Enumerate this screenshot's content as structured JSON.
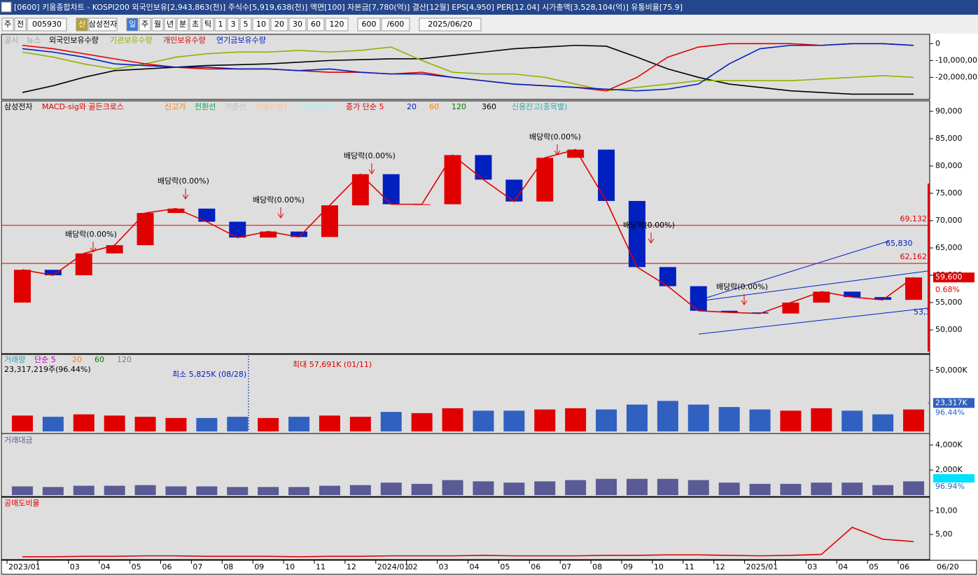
{
  "title_bar": {
    "text": "[0600] 키움종합차트 - KOSPI200 외국인보유[2,943,863(천)] 주식수[5,919,638(천)] 액면[100] 자본금[7,780(억)] 결산[12월] EPS[4,950] PER[12.04] 시가총액[3,528,104(억)] 유통비율[75.9]"
  },
  "toolbar": {
    "items": [
      "주",
      "전",
      "005930",
      "신",
      "삼성전자",
      "일",
      "주",
      "월",
      "년",
      "분",
      "초",
      "틱",
      "1",
      "3",
      "5",
      "10",
      "20",
      "30",
      "60",
      "120",
      "600",
      "/600",
      "2025/06/20"
    ]
  },
  "x_axis": {
    "categories": [
      "2023/01",
      null,
      "03",
      "04",
      "05",
      "06",
      "07",
      "08",
      "09",
      "10",
      "11",
      "12",
      "2024/01",
      "02",
      "03",
      "04",
      "05",
      "06",
      "07",
      "08",
      "09",
      "10",
      "11",
      "12",
      "2025/01",
      null,
      "03",
      "04",
      "05",
      "06"
    ],
    "last_label": "06/20"
  },
  "investor_panel": {
    "type": "line",
    "extra_legend": [
      "공시",
      "뉴스"
    ],
    "series": [
      {
        "name": "외국인보유수량",
        "color": "#000000",
        "values": [
          -29000000,
          -25000000,
          -20000000,
          -16000000,
          -15000000,
          -14000000,
          -13000000,
          -12500000,
          -12000000,
          -11000000,
          -10000000,
          -9500000,
          -9000000,
          -9000000,
          -7000000,
          -5000000,
          -3000000,
          -2000000,
          -1000000,
          -1500000,
          -8000000,
          -15000000,
          -20000000,
          -24000000,
          -26000000,
          -28000000,
          -29000000,
          -30000000,
          -30000000,
          -30000000
        ]
      },
      {
        "name": "기관보유수량",
        "color": "#8cb400",
        "values": [
          -5000000,
          -8000000,
          -12000000,
          -15000000,
          -12000000,
          -8000000,
          -6000000,
          -5000000,
          -5000000,
          -4000000,
          -5000000,
          -4000000,
          -2000000,
          -10000000,
          -17000000,
          -18000000,
          -18000000,
          -20000000,
          -24000000,
          -28000000,
          -26000000,
          -24000000,
          -22000000,
          -22000000,
          -22000000,
          -22000000,
          -21000000,
          -20000000,
          -19000000,
          -20000000
        ]
      },
      {
        "name": "개인보유수량",
        "color": "#e00000",
        "values": [
          -1000000,
          -3000000,
          -6000000,
          -9000000,
          -12000000,
          -14000000,
          -15000000,
          -15000000,
          -15000000,
          -16000000,
          -17000000,
          -17000000,
          -18000000,
          -17000000,
          -20000000,
          -22000000,
          -24000000,
          -25000000,
          -26000000,
          -28000000,
          -20000000,
          -8000000,
          -2000000,
          0,
          0,
          0,
          -1000000,
          0,
          0,
          -1000000
        ]
      },
      {
        "name": "연기금보유수량",
        "color": "#0020c0",
        "values": [
          -3000000,
          -5000000,
          -8000000,
          -12000000,
          -13000000,
          -14000000,
          -14000000,
          -15000000,
          -15000000,
          -16000000,
          -15000000,
          -17000000,
          -18000000,
          -18000000,
          -20000000,
          -22000000,
          -24000000,
          -25000000,
          -26000000,
          -27000000,
          -28000000,
          -27000000,
          -24000000,
          -12000000,
          -3000000,
          -1000000,
          -1000000,
          0,
          0,
          -1000000
        ]
      }
    ],
    "ylim": [
      -32300000,
      4300000
    ],
    "yticks": [
      0,
      {
        "value": -10000000,
        "label": "-10,000,00"
      },
      {
        "value": -20000000,
        "label": "-20,000,00"
      }
    ]
  },
  "price_panel": {
    "type": "candlestick",
    "legend": [
      {
        "text": "삼성전자",
        "color": "#000000"
      },
      {
        "text": "MACD-sig와 골든크로스",
        "color": "#e00000"
      },
      {
        "text": "신고가",
        "color": "#ff8000"
      },
      {
        "text": "전환선",
        "color": "#00b050"
      },
      {
        "text": "기준선",
        "color": "#c0c0c0"
      },
      {
        "text": "선행스팬1",
        "color": "#ffc090"
      },
      {
        "text": "선행스팬2",
        "color": "#a0f0ff"
      },
      {
        "text": "종가 단순 5",
        "color": "#e00000"
      },
      {
        "text": "20",
        "color": "#0020c0"
      },
      {
        "text": "60",
        "color": "#ff8000"
      },
      {
        "text": "120",
        "color": "#008000"
      },
      {
        "text": "360",
        "color": "#000000"
      },
      {
        "text": "신용잔고(종목별)",
        "color": "#30b0b0"
      }
    ],
    "open": [
      55000,
      61000,
      60000,
      64000,
      65500,
      71400,
      72200,
      69800,
      66900,
      68000,
      67000,
      72800,
      78500,
      73000,
      73000,
      82000,
      77500,
      73500,
      81500,
      83000,
      73600,
      61500,
      58000,
      53500,
      53200,
      53000,
      55000,
      57000,
      56000,
      55500
    ],
    "close": [
      61000,
      60000,
      64000,
      65500,
      71400,
      72200,
      69800,
      66900,
      68000,
      67000,
      72800,
      78500,
      73000,
      73000,
      82000,
      77500,
      73500,
      81500,
      83000,
      73600,
      61500,
      58000,
      53500,
      53200,
      53000,
      55000,
      57000,
      56000,
      55500,
      59600
    ],
    "up_color": "#e00000",
    "down_color": "#0020c0",
    "ylim": [
      45900,
      91540
    ],
    "yticks": [
      {
        "value": 90000,
        "label": "90,000"
      },
      {
        "value": 85000,
        "label": "85,000"
      },
      {
        "value": 80000,
        "label": "80,000"
      },
      {
        "value": 75000,
        "label": "75,000"
      },
      {
        "value": 70000,
        "label": "70,000"
      },
      {
        "value": 65000,
        "label": "65,000"
      },
      {
        "value": 60000,
        "label": "60,000"
      },
      {
        "value": 55000,
        "label": "55,000"
      },
      {
        "value": 50000,
        "label": "50,000"
      }
    ],
    "ref_lines": [
      {
        "value": 69132,
        "label": "69,132"
      },
      {
        "value": 62162,
        "label": "62,162"
      }
    ],
    "current": {
      "value": 59600,
      "label": "59,600",
      "change": "0.68%"
    },
    "annotations": [
      "배당락(0.00%)",
      "배당락(0.00%)",
      "배당락(0.00%)",
      "배당락(0.00%)",
      "배당락(0.00%)",
      "배당락(0.00%)",
      "배당락(0.00%)",
      "65,830",
      "53,3"
    ]
  },
  "volume_panel": {
    "type": "bar",
    "legend": [
      "거래량",
      "단순 5",
      "20",
      "60",
      "120"
    ],
    "values": [
      13000,
      12000,
      14000,
      13000,
      12000,
      11000,
      11000,
      12000,
      11000,
      12000,
      13000,
      12000,
      16000,
      15000,
      19000,
      17000,
      17000,
      18000,
      19000,
      18000,
      22000,
      25000,
      22000,
      20000,
      18000,
      17000,
      19000,
      17000,
      14000,
      18000
    ],
    "ylim": [
      0,
      62000
    ],
    "yticks": [
      {
        "value": 50000,
        "label": "50,000K"
      }
    ],
    "current": {
      "value": 23317,
      "label": "23,317K",
      "ratio": "96.44%"
    },
    "annotations": [
      "23,317,219주(96.44%)",
      "최소 5,825K (08/28)",
      "최대 57,691K (01/11)"
    ]
  },
  "value_panel": {
    "type": "bar",
    "legend": [
      "거래대금"
    ],
    "color": "#5a5a96",
    "values": [
      700,
      650,
      750,
      750,
      800,
      700,
      700,
      650,
      650,
      650,
      750,
      800,
      1000,
      900,
      1200,
      1100,
      1000,
      1100,
      1200,
      1300,
      1300,
      1300,
      1200,
      1000,
      900,
      900,
      1000,
      1000,
      800,
      1100
    ],
    "ylim": [
      0,
      4800
    ],
    "yticks": [
      {
        "value": 4000,
        "label": "4,000K"
      },
      {
        "value": 2000,
        "label": "2,000K"
      }
    ],
    "ratio": "96.94%"
  },
  "short_panel": {
    "type": "line",
    "legend": [
      "공매도비율"
    ],
    "color": "#e00000",
    "values": [
      0.3,
      0.3,
      0.4,
      0.4,
      0.5,
      0.5,
      0.4,
      0.4,
      0.4,
      0.3,
      0.4,
      0.4,
      0.5,
      0.5,
      0.5,
      0.6,
      0.5,
      0.5,
      0.5,
      0.6,
      0.6,
      0.7,
      0.7,
      0.6,
      0.5,
      0.6,
      0.8,
      6.5,
      4.0,
      3.5
    ],
    "ylim": [
      0,
      12.4
    ],
    "yticks": [
      {
        "value": 10,
        "label": "10,00"
      },
      {
        "value": 5,
        "label": "5,00"
      }
    ]
  }
}
